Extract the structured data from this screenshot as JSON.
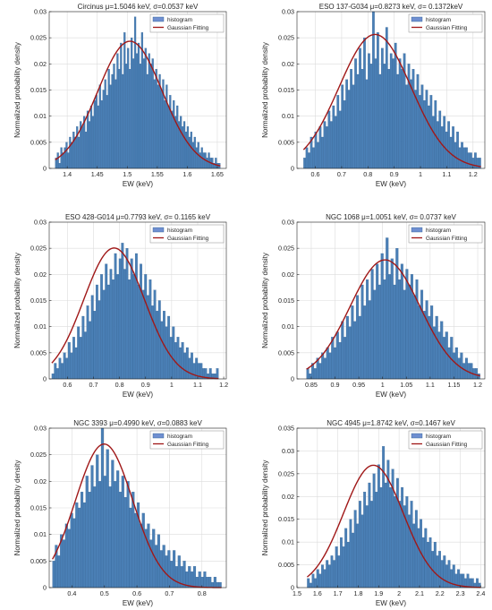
{
  "figure": {
    "colors": {
      "bar_fill": "#4a7fb5",
      "bar_edge": "#2f5f91",
      "fit_line": "#a01818",
      "grid": "#dcdcdc",
      "axes": "#262626",
      "legend_hist_swatch": "#6f8fd0"
    },
    "legend": {
      "histogram_label": "histogram",
      "fit_label": "Gaussian Fitting",
      "placement": "top-right"
    }
  },
  "chart_data": [
    {
      "type": "bar",
      "title": "Circinus μ=1.5046 keV, σ=0.0537 keV",
      "xlabel": "EW (keV)",
      "ylabel": "Normalized probability density",
      "xlim": [
        1.37,
        1.665
      ],
      "ylim": [
        0,
        0.03
      ],
      "xticks": [
        "1.4",
        "1.45",
        "1.5",
        "1.55",
        "1.6",
        "1.65"
      ],
      "xtick_values": [
        1.4,
        1.45,
        1.5,
        1.55,
        1.6,
        1.65
      ],
      "yticks": [
        "0",
        "0.005",
        "0.01",
        "0.015",
        "0.02",
        "0.025",
        "0.03"
      ],
      "ytick_values": [
        0,
        0.005,
        0.01,
        0.015,
        0.02,
        0.025,
        0.03
      ],
      "grid": true,
      "hist_range": [
        1.38,
        1.655
      ],
      "mu": 1.5046,
      "sigma": 0.0537,
      "series": [
        {
          "name": "histogram",
          "kind": "histogram",
          "values": [
            0.002,
            0.003,
            0.001,
            0.004,
            0.003,
            0.004,
            0.005,
            0.003,
            0.006,
            0.005,
            0.007,
            0.006,
            0.008,
            0.006,
            0.009,
            0.008,
            0.01,
            0.007,
            0.011,
            0.009,
            0.012,
            0.01,
            0.013,
            0.014,
            0.012,
            0.016,
            0.013,
            0.015,
            0.017,
            0.014,
            0.019,
            0.016,
            0.018,
            0.02,
            0.017,
            0.022,
            0.019,
            0.024,
            0.018,
            0.026,
            0.02,
            0.023,
            0.019,
            0.025,
            0.021,
            0.029,
            0.022,
            0.024,
            0.02,
            0.026,
            0.021,
            0.023,
            0.018,
            0.022,
            0.02,
            0.021,
            0.017,
            0.019,
            0.016,
            0.018,
            0.015,
            0.017,
            0.013,
            0.016,
            0.012,
            0.014,
            0.011,
            0.013,
            0.01,
            0.012,
            0.009,
            0.01,
            0.008,
            0.009,
            0.007,
            0.008,
            0.006,
            0.007,
            0.005,
            0.006,
            0.004,
            0.005,
            0.003,
            0.004,
            0.003,
            0.003,
            0.002,
            0.003,
            0.002,
            0.002,
            0.001,
            0.002,
            0.001,
            0.001
          ]
        },
        {
          "name": "Gaussian Fitting",
          "kind": "gaussian"
        }
      ]
    },
    {
      "type": "bar",
      "title": "ESO 137-G034 μ=0.8273 keV, σ= 0.1372keV",
      "xlabel": "EW (keV)",
      "ylabel": "Normalized probability density",
      "xlim": [
        0.53,
        1.245
      ],
      "ylim": [
        0,
        0.03
      ],
      "xticks": [
        "0.6",
        "0.7",
        "0.8",
        "0.9",
        "1",
        "1.1",
        "1.2"
      ],
      "xtick_values": [
        0.6,
        0.7,
        0.8,
        0.9,
        1.0,
        1.1,
        1.2
      ],
      "yticks": [
        "0",
        "0.005",
        "0.01",
        "0.015",
        "0.02",
        "0.025",
        "0.03"
      ],
      "ytick_values": [
        0,
        0.005,
        0.01,
        0.015,
        0.02,
        0.025,
        0.03
      ],
      "grid": true,
      "hist_range": [
        0.555,
        1.23
      ],
      "mu": 0.8273,
      "sigma": 0.1372,
      "series": [
        {
          "name": "histogram",
          "kind": "histogram",
          "values": [
            0.002,
            0.004,
            0.003,
            0.006,
            0.004,
            0.007,
            0.005,
            0.008,
            0.006,
            0.009,
            0.008,
            0.011,
            0.009,
            0.012,
            0.01,
            0.014,
            0.011,
            0.016,
            0.013,
            0.017,
            0.015,
            0.019,
            0.016,
            0.021,
            0.018,
            0.023,
            0.019,
            0.025,
            0.017,
            0.022,
            0.02,
            0.03,
            0.021,
            0.026,
            0.018,
            0.023,
            0.02,
            0.027,
            0.019,
            0.022,
            0.021,
            0.024,
            0.018,
            0.021,
            0.019,
            0.022,
            0.016,
            0.02,
            0.017,
            0.019,
            0.015,
            0.018,
            0.014,
            0.016,
            0.013,
            0.015,
            0.012,
            0.014,
            0.01,
            0.013,
            0.009,
            0.011,
            0.008,
            0.01,
            0.007,
            0.009,
            0.006,
            0.008,
            0.005,
            0.007,
            0.004,
            0.005,
            0.004,
            0.004,
            0.003,
            0.003,
            0.002,
            0.003,
            0.002,
            0.002
          ]
        },
        {
          "name": "Gaussian Fitting",
          "kind": "gaussian"
        }
      ]
    },
    {
      "type": "bar",
      "title": "ESO 428-G014 μ=0.7793 keV, σ= 0.1165 keV",
      "xlabel": "EW (keV)",
      "ylabel": "Normalized probability density",
      "xlim": [
        0.53,
        1.21
      ],
      "ylim": [
        0,
        0.03
      ],
      "xticks": [
        "0.6",
        "0.7",
        "0.8",
        "0.9",
        "1",
        "1.1",
        "1.2"
      ],
      "xtick_values": [
        0.6,
        0.7,
        0.8,
        0.9,
        1.0,
        1.1,
        1.2
      ],
      "yticks": [
        "0",
        "0.005",
        "0.01",
        "0.015",
        "0.02",
        "0.025",
        "0.03"
      ],
      "ytick_values": [
        0,
        0.005,
        0.01,
        0.015,
        0.02,
        0.025,
        0.03
      ],
      "grid": true,
      "hist_range": [
        0.54,
        1.18
      ],
      "mu": 0.7793,
      "sigma": 0.1165,
      "series": [
        {
          "name": "histogram",
          "kind": "histogram",
          "values": [
            0.001,
            0.003,
            0.002,
            0.004,
            0.003,
            0.005,
            0.004,
            0.007,
            0.005,
            0.008,
            0.006,
            0.01,
            0.008,
            0.012,
            0.009,
            0.014,
            0.011,
            0.016,
            0.013,
            0.018,
            0.015,
            0.02,
            0.017,
            0.022,
            0.018,
            0.021,
            0.019,
            0.024,
            0.02,
            0.023,
            0.026,
            0.021,
            0.025,
            0.019,
            0.023,
            0.02,
            0.024,
            0.018,
            0.022,
            0.017,
            0.02,
            0.016,
            0.019,
            0.014,
            0.017,
            0.013,
            0.015,
            0.011,
            0.013,
            0.01,
            0.012,
            0.008,
            0.01,
            0.007,
            0.008,
            0.006,
            0.007,
            0.005,
            0.006,
            0.004,
            0.005,
            0.003,
            0.004,
            0.003,
            0.003,
            0.002,
            0.002,
            0.001,
            0.002,
            0.001,
            0.001,
            0.002
          ]
        },
        {
          "name": "Gaussian Fitting",
          "kind": "gaussian"
        }
      ]
    },
    {
      "type": "bar",
      "title": "NGC 1068 μ=1.0051 keV, σ= 0.0737 keV",
      "xlabel": "EW (keV)",
      "ylabel": "Normalized probability density",
      "xlim": [
        0.82,
        1.215
      ],
      "ylim": [
        0,
        0.03
      ],
      "xticks": [
        "0.85",
        "0.9",
        "0.95",
        "1",
        "1.05",
        "1.1",
        "1.15",
        "1.2"
      ],
      "xtick_values": [
        0.85,
        0.9,
        0.95,
        1.0,
        1.05,
        1.1,
        1.15,
        1.2
      ],
      "yticks": [
        "0",
        "0.005",
        "0.01",
        "0.015",
        "0.02",
        "0.025",
        "0.03"
      ],
      "ytick_values": [
        0,
        0.005,
        0.01,
        0.015,
        0.02,
        0.025,
        0.03
      ],
      "grid": true,
      "hist_range": [
        0.84,
        1.205
      ],
      "mu": 1.0051,
      "sigma": 0.0737,
      "series": [
        {
          "name": "histogram",
          "kind": "histogram",
          "values": [
            0.002,
            0.001,
            0.003,
            0.002,
            0.004,
            0.003,
            0.005,
            0.004,
            0.006,
            0.005,
            0.008,
            0.006,
            0.009,
            0.007,
            0.011,
            0.008,
            0.012,
            0.01,
            0.014,
            0.011,
            0.016,
            0.012,
            0.018,
            0.014,
            0.019,
            0.015,
            0.021,
            0.017,
            0.022,
            0.018,
            0.024,
            0.019,
            0.027,
            0.02,
            0.023,
            0.018,
            0.025,
            0.019,
            0.022,
            0.017,
            0.021,
            0.018,
            0.02,
            0.016,
            0.019,
            0.014,
            0.017,
            0.013,
            0.015,
            0.012,
            0.014,
            0.01,
            0.012,
            0.009,
            0.011,
            0.008,
            0.009,
            0.006,
            0.008,
            0.005,
            0.006,
            0.004,
            0.005,
            0.003,
            0.004,
            0.003,
            0.003,
            0.002,
            0.002,
            0.001
          ]
        },
        {
          "name": "Gaussian Fitting",
          "kind": "gaussian"
        }
      ]
    },
    {
      "type": "bar",
      "title": "NGC 3393 μ=0.4990 keV, σ=0.0883  keV",
      "xlabel": "EW (keV)",
      "ylabel": "Normalized probability density",
      "xlim": [
        0.33,
        0.875
      ],
      "ylim": [
        0,
        0.03
      ],
      "xticks": [
        "0.4",
        "0.5",
        "0.6",
        "0.7",
        "0.8"
      ],
      "xtick_values": [
        0.4,
        0.5,
        0.6,
        0.7,
        0.8
      ],
      "yticks": [
        "0",
        "0.005",
        "0.01",
        "0.015",
        "0.02",
        "0.025",
        "0.03"
      ],
      "ytick_values": [
        0,
        0.005,
        0.01,
        0.015,
        0.02,
        0.025,
        0.03
      ],
      "grid": true,
      "hist_range": [
        0.34,
        0.86
      ],
      "mu": 0.499,
      "sigma": 0.0883,
      "series": [
        {
          "name": "histogram",
          "kind": "histogram",
          "values": [
            0.005,
            0.008,
            0.006,
            0.01,
            0.009,
            0.012,
            0.011,
            0.014,
            0.013,
            0.016,
            0.015,
            0.018,
            0.016,
            0.021,
            0.018,
            0.023,
            0.019,
            0.025,
            0.02,
            0.03,
            0.021,
            0.026,
            0.019,
            0.024,
            0.02,
            0.022,
            0.018,
            0.021,
            0.017,
            0.02,
            0.015,
            0.018,
            0.014,
            0.016,
            0.012,
            0.014,
            0.011,
            0.012,
            0.009,
            0.011,
            0.008,
            0.01,
            0.007,
            0.008,
            0.006,
            0.007,
            0.005,
            0.007,
            0.004,
            0.006,
            0.004,
            0.005,
            0.003,
            0.004,
            0.003,
            0.004,
            0.002,
            0.003,
            0.002,
            0.003,
            0.002,
            0.002,
            0.001,
            0.002,
            0.001,
            0.001
          ]
        },
        {
          "name": "Gaussian Fitting",
          "kind": "gaussian"
        }
      ]
    },
    {
      "type": "bar",
      "title": "NGC 4945 μ=1.8742 keV, σ=0.1467 keV",
      "xlabel": "EW (keV)",
      "ylabel": "Normalized probability density",
      "xlim": [
        1.5,
        2.42
      ],
      "ylim": [
        0,
        0.035
      ],
      "xticks": [
        "1.5",
        "1.6",
        "1.7",
        "1.8",
        "1.9",
        "2",
        "2.1",
        "2.2",
        "2.3",
        "2.4"
      ],
      "xtick_values": [
        1.5,
        1.6,
        1.7,
        1.8,
        1.9,
        2.0,
        2.1,
        2.2,
        2.3,
        2.4
      ],
      "yticks": [
        "0",
        "0.005",
        "0.01",
        "0.015",
        "0.02",
        "0.025",
        "0.03",
        "0.035"
      ],
      "ytick_values": [
        0,
        0.005,
        0.01,
        0.015,
        0.02,
        0.025,
        0.03,
        0.035
      ],
      "grid": true,
      "hist_range": [
        1.55,
        2.4
      ],
      "mu": 1.8742,
      "sigma": 0.1467,
      "series": [
        {
          "name": "histogram",
          "kind": "histogram",
          "values": [
            0.002,
            0.001,
            0.003,
            0.002,
            0.004,
            0.003,
            0.005,
            0.004,
            0.006,
            0.005,
            0.007,
            0.006,
            0.009,
            0.007,
            0.011,
            0.009,
            0.013,
            0.01,
            0.015,
            0.012,
            0.017,
            0.014,
            0.019,
            0.016,
            0.021,
            0.018,
            0.023,
            0.019,
            0.025,
            0.021,
            0.027,
            0.022,
            0.031,
            0.023,
            0.028,
            0.022,
            0.026,
            0.02,
            0.024,
            0.019,
            0.022,
            0.018,
            0.02,
            0.016,
            0.019,
            0.014,
            0.017,
            0.013,
            0.015,
            0.011,
            0.013,
            0.01,
            0.011,
            0.008,
            0.01,
            0.007,
            0.008,
            0.006,
            0.007,
            0.005,
            0.006,
            0.004,
            0.005,
            0.003,
            0.004,
            0.003,
            0.003,
            0.002,
            0.003,
            0.002,
            0.002,
            0.001,
            0.002,
            0.001
          ]
        },
        {
          "name": "Gaussian Fitting",
          "kind": "gaussian"
        }
      ]
    }
  ]
}
